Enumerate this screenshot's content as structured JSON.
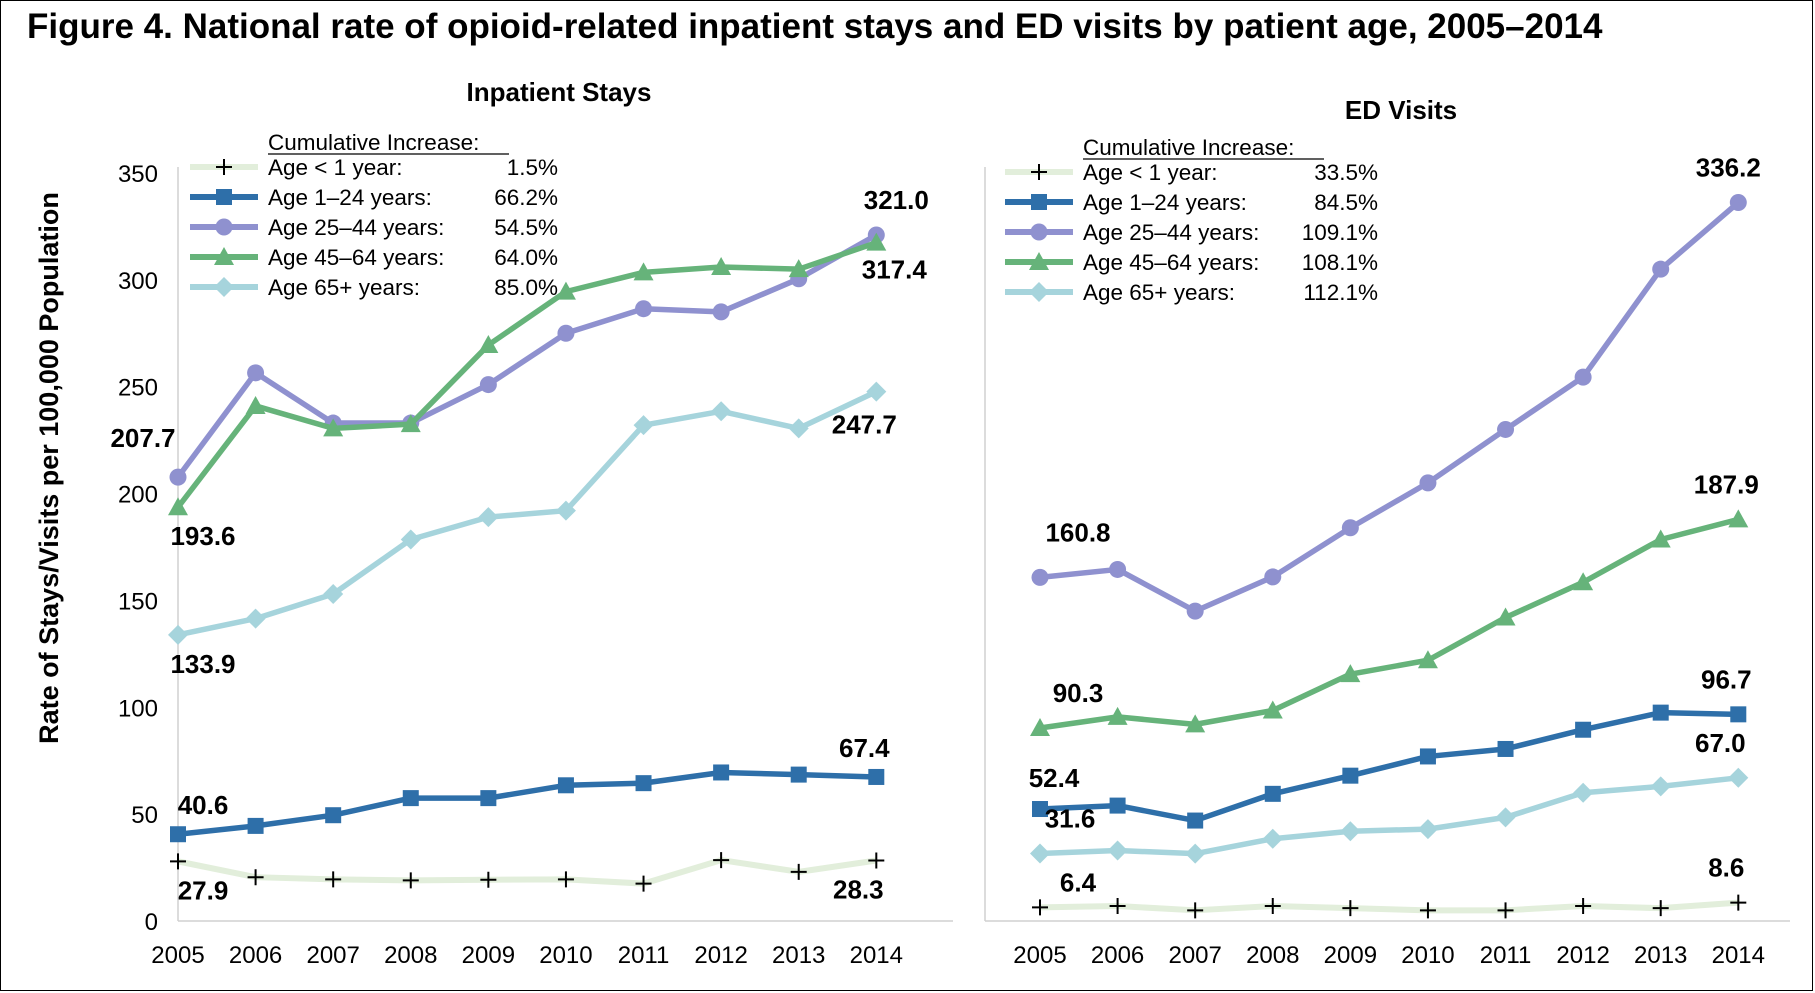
{
  "title": "Figure 4. National rate of opioid-related inpatient stays and ED visits by patient age, 2005–2014",
  "colors": {
    "lt1": "#e2eedb",
    "a1_24": "#2e6fa9",
    "a25_44": "#8f91cf",
    "a45_64": "#66b37a",
    "a65": "#a6d4dc",
    "axis": "#d0d0d0"
  },
  "chart_data": [
    {
      "type": "line",
      "title": "Inpatient Stays",
      "ylabel": "Rate of Stays/Visits per 100,000 Population",
      "ylim": [
        0,
        350
      ],
      "yticks": [
        "0",
        "50",
        "100",
        "150",
        "200",
        "250",
        "300",
        "350"
      ],
      "x": [
        "2005",
        "2006",
        "2007",
        "2008",
        "2009",
        "2010",
        "2011",
        "2012",
        "2013",
        "2014"
      ],
      "legend_title": "Cumulative Increase:",
      "series": [
        {
          "name": "Age < 1 year:",
          "increase": "1.5%",
          "marker": "plus",
          "values": [
            27.9,
            20.5,
            19.5,
            19.0,
            19.3,
            19.5,
            17.5,
            28.5,
            23.0,
            28.3
          ]
        },
        {
          "name": "Age 1–24 years:",
          "increase": "66.2%",
          "marker": "square",
          "values": [
            40.6,
            44.5,
            49.5,
            57.5,
            57.5,
            63.5,
            64.5,
            69.5,
            68.5,
            67.4
          ]
        },
        {
          "name": "Age 25–44 years:",
          "increase": "54.5%",
          "marker": "circle",
          "values": [
            207.7,
            256.5,
            233.0,
            233.0,
            251.0,
            275.0,
            286.5,
            285.0,
            300.5,
            321.0
          ]
        },
        {
          "name": "Age 45–64 years:",
          "increase": "64.0%",
          "marker": "triangle",
          "values": [
            193.6,
            241.0,
            230.5,
            232.5,
            269.5,
            294.5,
            303.5,
            306.0,
            305.0,
            317.4
          ]
        },
        {
          "name": "Age 65+ years:",
          "increase": "85.0%",
          "marker": "diamond",
          "values": [
            133.9,
            141.5,
            153.0,
            178.5,
            189.0,
            192.0,
            232.0,
            238.5,
            230.5,
            247.7
          ]
        }
      ],
      "data_labels": [
        "27.9",
        "28.3",
        "40.6",
        "67.4",
        "207.7",
        "321.0",
        "193.6",
        "317.4",
        "133.9",
        "247.7"
      ]
    },
    {
      "type": "line",
      "title": "ED Visits",
      "ylim": [
        0,
        350
      ],
      "x": [
        "2005",
        "2006",
        "2007",
        "2008",
        "2009",
        "2010",
        "2011",
        "2012",
        "2013",
        "2014"
      ],
      "legend_title": "Cumulative Increase:",
      "series": [
        {
          "name": "Age < 1 year:",
          "increase": "33.5%",
          "marker": "plus",
          "values": [
            6.4,
            7.0,
            5.0,
            7.0,
            6.0,
            5.0,
            5.0,
            7.0,
            6.0,
            8.6
          ]
        },
        {
          "name": "Age 1–24 years:",
          "increase": "84.5%",
          "marker": "square",
          "values": [
            52.4,
            54.0,
            47.0,
            59.5,
            68.0,
            77.0,
            80.5,
            89.5,
            97.5,
            96.7
          ]
        },
        {
          "name": "Age 25–44 years:",
          "increase": "109.1%",
          "marker": "circle",
          "values": [
            160.8,
            164.5,
            145.0,
            161.0,
            184.0,
            205.0,
            230.0,
            254.5,
            305.0,
            336.2
          ]
        },
        {
          "name": "Age 45–64 years:",
          "increase": "108.1%",
          "marker": "triangle",
          "values": [
            90.3,
            95.5,
            92.0,
            98.5,
            115.5,
            122.0,
            142.0,
            158.5,
            178.5,
            187.9
          ]
        },
        {
          "name": "Age 65+ years:",
          "increase": "112.1%",
          "marker": "diamond",
          "values": [
            31.6,
            33.0,
            31.5,
            38.5,
            42.0,
            43.0,
            48.5,
            60.0,
            63.0,
            67.0
          ]
        }
      ],
      "data_labels": [
        "6.4",
        "8.6",
        "52.4",
        "96.7",
        "31.6",
        "67.0",
        "160.8",
        "336.2",
        "90.3",
        "187.9"
      ]
    }
  ]
}
